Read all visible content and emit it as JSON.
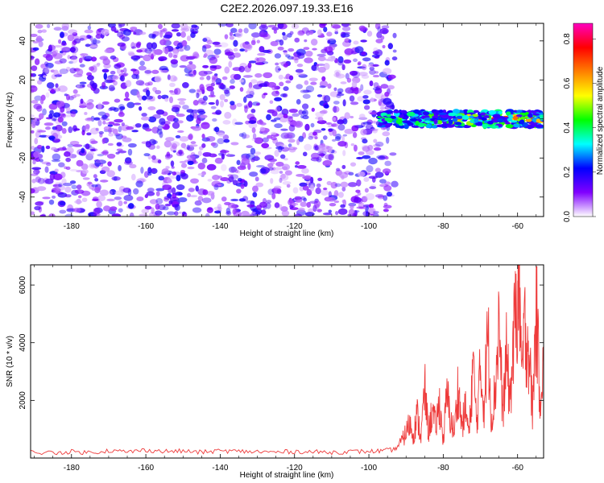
{
  "title": "C2E2.2026.097.19.33.E16",
  "chart_data": [
    {
      "type": "heatmap",
      "name": "spectrogram",
      "xlabel": "Height of straight line (km)",
      "ylabel": "Frequency (Hz)",
      "xlim": [
        -191,
        -53
      ],
      "ylim": [
        -50,
        49
      ],
      "x_ticks": [
        -180,
        -160,
        -140,
        -120,
        -100,
        -80,
        -60
      ],
      "y_ticks": [
        -40,
        -20,
        0,
        20,
        40
      ],
      "noise_region": {
        "x": [
          -191,
          -93
        ],
        "y": [
          -50,
          49
        ],
        "amplitude_range": [
          0.02,
          0.15
        ]
      },
      "signal_band": {
        "x": [
          -97,
          -53
        ],
        "center_frequency": 0,
        "half_width": 4,
        "amplitude_range": [
          0.15,
          0.85
        ]
      },
      "colorbar": {
        "label": "Normalized spectral amplitude",
        "range": [
          0,
          0.87
        ],
        "ticks": [
          "0.0",
          "0.2",
          "0.4",
          "0.6",
          "0.8"
        ],
        "colors": [
          "#ffffff",
          "#8000ff",
          "#0000ff",
          "#00ffff",
          "#00ff00",
          "#ffff00",
          "#ff8000",
          "#ff0000",
          "#ff00c0"
        ]
      }
    },
    {
      "type": "line",
      "name": "snr",
      "xlabel": "Height of straight line (km)",
      "ylabel": "SNR (10 * v/v)",
      "xlim": [
        -191,
        -53
      ],
      "ylim": [
        0,
        6700
      ],
      "x_ticks": [
        -180,
        -160,
        -140,
        -120,
        -100,
        -80,
        -60
      ],
      "y_ticks": [
        2000,
        4000,
        6000
      ],
      "color": "#ee3a3a",
      "series": [
        {
          "name": "SNR",
          "x": [
            -191,
            -185,
            -180,
            -175,
            -170,
            -165,
            -160,
            -155,
            -150,
            -145,
            -140,
            -135,
            -130,
            -125,
            -120,
            -115,
            -110,
            -105,
            -100,
            -96,
            -93,
            -91,
            -90,
            -89,
            -88,
            -87,
            -86,
            -85,
            -84,
            -83,
            -82,
            -81,
            -80,
            -79,
            -78,
            -77,
            -76,
            -75,
            -74,
            -73,
            -72,
            -71,
            -70,
            -69,
            -68,
            -67,
            -66,
            -65,
            -64,
            -63,
            -62,
            -61,
            -60,
            -59.5,
            -59,
            -58,
            -57,
            -56,
            -55,
            -54,
            -53
          ],
          "y": [
            200,
            180,
            220,
            190,
            260,
            210,
            280,
            230,
            240,
            200,
            250,
            230,
            220,
            200,
            230,
            210,
            200,
            220,
            230,
            250,
            300,
            600,
            900,
            1200,
            800,
            1500,
            700,
            2400,
            900,
            1600,
            1100,
            1900,
            600,
            2200,
            1300,
            900,
            2500,
            1100,
            1700,
            800,
            3300,
            1200,
            3000,
            1800,
            4400,
            1300,
            2400,
            4800,
            1500,
            3500,
            2000,
            4100,
            5900,
            6600,
            2800,
            4500,
            3900,
            1600,
            5200,
            2200,
            3300
          ]
        }
      ]
    }
  ]
}
